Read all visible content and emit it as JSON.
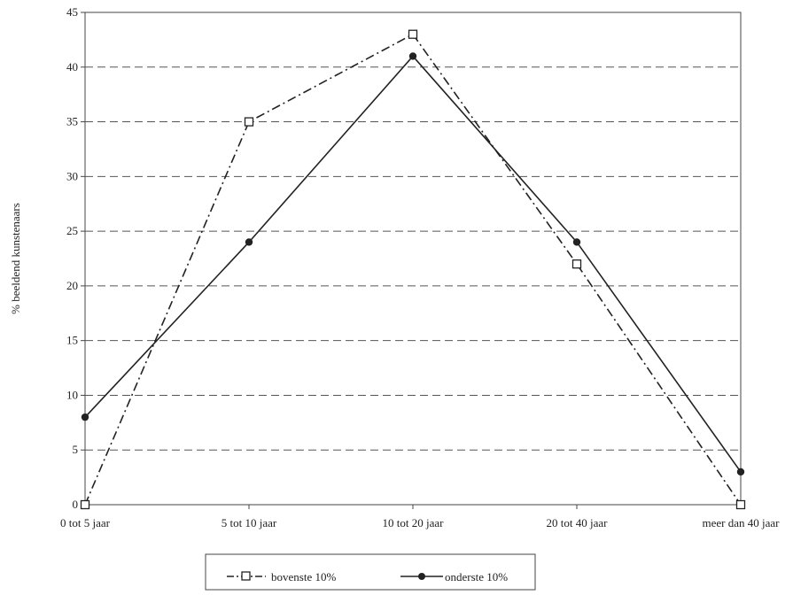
{
  "chart_data": {
    "type": "line",
    "categories": [
      "0 tot 5 jaar",
      "5 tot 10 jaar",
      "10 tot 20 jaar",
      "20 tot 40 jaar",
      "meer dan 40 jaar"
    ],
    "series": [
      {
        "name": "bovenste 10%",
        "values": [
          0,
          35,
          43,
          22,
          0
        ],
        "marker": "open-square",
        "line_style": "dash-dot",
        "color": "#222222"
      },
      {
        "name": "onderste 10%",
        "values": [
          8,
          24,
          41,
          24,
          3
        ],
        "marker": "filled-circle",
        "line_style": "solid",
        "color": "#222222"
      }
    ],
    "xlabel": "",
    "ylabel": "% beeldend kunstenaars",
    "ylim": [
      0,
      45
    ],
    "yticks": [
      0,
      5,
      10,
      15,
      20,
      25,
      30,
      35,
      40,
      45
    ],
    "grid": "horizontal-dashed",
    "legend_position": "bottom"
  }
}
